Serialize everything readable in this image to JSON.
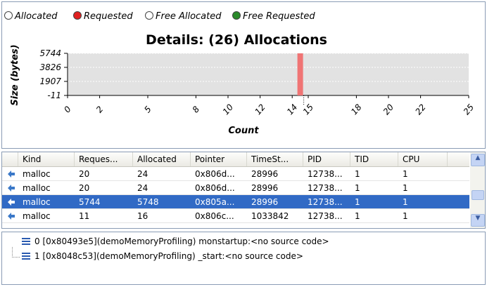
{
  "legend": [
    "Allocated",
    "Requested",
    "Free Allocated",
    "Free Requested"
  ],
  "chart": {
    "title": "Details: (26) Allocations",
    "y_label": "Size (bytes)",
    "x_label": "Count",
    "ylim": [
      -11,
      5744
    ],
    "yticks": [
      5744,
      3826,
      1907,
      -11
    ],
    "xlim": [
      0,
      25
    ],
    "xticks": [
      0,
      2,
      5,
      8,
      10,
      12,
      14,
      15,
      18,
      20,
      22,
      25
    ],
    "bar": {
      "x": 14.5,
      "value": 5744,
      "color": "#f07474"
    }
  },
  "table": {
    "headers": [
      "Kind",
      "Reques...",
      "Allocated",
      "Pointer",
      "TimeSt...",
      "PID",
      "TID",
      "CPU"
    ],
    "rows": [
      {
        "cells": [
          "malloc",
          "20",
          "24",
          "0x806d...",
          "28996",
          "12738...",
          "1",
          "1"
        ],
        "selected": false
      },
      {
        "cells": [
          "malloc",
          "20",
          "24",
          "0x806d...",
          "28996",
          "12738...",
          "1",
          "1"
        ],
        "selected": false
      },
      {
        "cells": [
          "malloc",
          "5744",
          "5748",
          "0x805a...",
          "28996",
          "12738...",
          "1",
          "1"
        ],
        "selected": true
      },
      {
        "cells": [
          "malloc",
          "11",
          "16",
          "0x806c...",
          "1033842",
          "12738...",
          "1",
          "1"
        ],
        "selected": false
      }
    ]
  },
  "stack": [
    "0 [0x80493e5](demoMemoryProfiling) monstartup:<no source code>",
    "1 [0x8048c53](demoMemoryProfiling) _start:<no source code>"
  ]
}
